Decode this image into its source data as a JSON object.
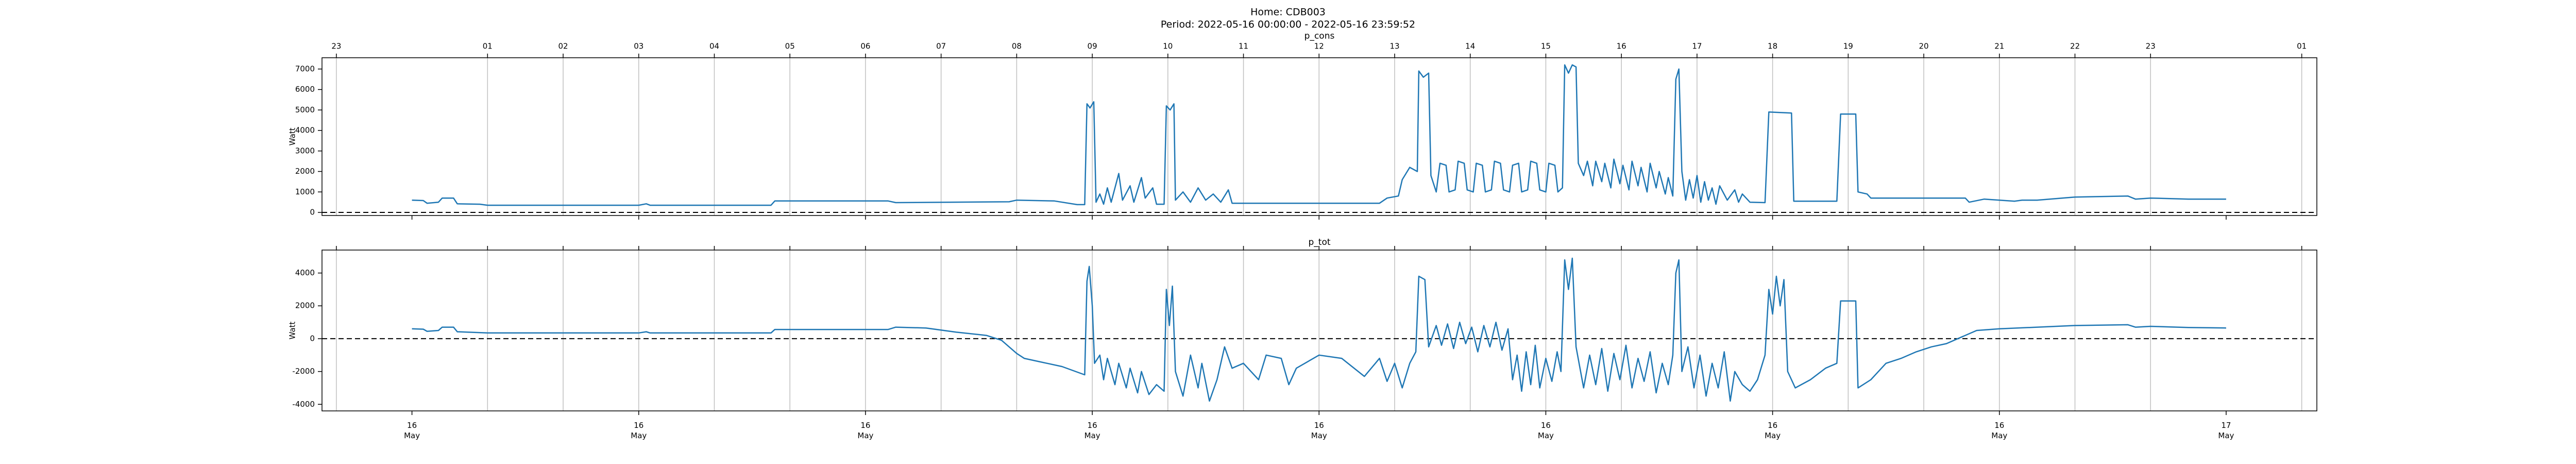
{
  "title": "Home: CDB003",
  "subtitle": "Period: 2022-05-16 00:00:00 - 2022-05-16 23:59:52",
  "chart_data": [
    {
      "type": "line",
      "title": "p_cons",
      "y_label": "Watt",
      "color": "#1f77b4",
      "grid": "x",
      "hline": 0,
      "xlim": [
        -1.19,
        25.2
      ],
      "ylim": [
        -150,
        7550
      ],
      "yticks": [
        0,
        1000,
        2000,
        3000,
        4000,
        5000,
        6000,
        7000
      ],
      "x2ticks": [
        {
          "value": -1,
          "label": "23"
        },
        {
          "value": 1,
          "label": "01"
        },
        {
          "value": 2,
          "label": "02"
        },
        {
          "value": 3,
          "label": "03"
        },
        {
          "value": 4,
          "label": "04"
        },
        {
          "value": 5,
          "label": "05"
        },
        {
          "value": 6,
          "label": "06"
        },
        {
          "value": 7,
          "label": "07"
        },
        {
          "value": 8,
          "label": "08"
        },
        {
          "value": 9,
          "label": "09"
        },
        10,
        11,
        12,
        13,
        14,
        15,
        16,
        17,
        18,
        19,
        20,
        21,
        22,
        23,
        {
          "value": 25,
          "label": "01"
        }
      ],
      "x": [
        0,
        0.15,
        0.2,
        0.35,
        0.4,
        0.55,
        0.6,
        0.9,
        1.0,
        3.0,
        3.1,
        3.15,
        4.75,
        4.8,
        6.3,
        6.4,
        7.9,
        8.0,
        8.5,
        8.8,
        8.9,
        8.93,
        8.97,
        9.02,
        9.05,
        9.1,
        9.15,
        9.2,
        9.25,
        9.35,
        9.4,
        9.5,
        9.55,
        9.65,
        9.7,
        9.8,
        9.85,
        9.95,
        9.98,
        10.03,
        10.08,
        10.1,
        10.2,
        10.3,
        10.4,
        10.5,
        10.6,
        10.7,
        10.8,
        10.85,
        12.8,
        12.9,
        13.05,
        13.1,
        13.2,
        13.3,
        13.32,
        13.38,
        13.45,
        13.48,
        13.55,
        13.6,
        13.68,
        13.72,
        13.8,
        13.84,
        13.92,
        13.96,
        14.04,
        14.08,
        14.16,
        14.2,
        14.28,
        14.32,
        14.4,
        14.44,
        14.52,
        14.56,
        14.64,
        14.68,
        14.76,
        14.8,
        14.88,
        14.92,
        15.0,
        15.04,
        15.12,
        15.16,
        15.22,
        15.25,
        15.3,
        15.35,
        15.4,
        15.43,
        15.5,
        15.55,
        15.62,
        15.66,
        15.74,
        15.78,
        15.86,
        15.9,
        15.98,
        16.02,
        16.1,
        16.14,
        16.22,
        16.26,
        16.34,
        16.38,
        16.46,
        16.5,
        16.58,
        16.62,
        16.68,
        16.72,
        16.76,
        16.8,
        16.85,
        16.9,
        16.95,
        17.0,
        17.05,
        17.1,
        17.15,
        17.2,
        17.25,
        17.3,
        17.4,
        17.5,
        17.55,
        17.6,
        17.7,
        17.9,
        17.95,
        18.25,
        18.28,
        18.85,
        18.9,
        19.1,
        19.13,
        19.25,
        19.3,
        20.55,
        20.6,
        20.8,
        21.2,
        21.3,
        21.5,
        22.0,
        22.7,
        22.8,
        23.0,
        23.5,
        24.0
      ],
      "values": [
        600,
        580,
        450,
        500,
        700,
        700,
        420,
        400,
        350,
        350,
        420,
        350,
        350,
        560,
        560,
        480,
        520,
        600,
        560,
        380,
        380,
        5300,
        5100,
        5400,
        500,
        900,
        400,
        1200,
        500,
        1900,
        600,
        1300,
        500,
        1700,
        700,
        1200,
        400,
        400,
        5200,
        5000,
        5300,
        600,
        1000,
        500,
        1200,
        600,
        900,
        500,
        1100,
        450,
        450,
        700,
        800,
        1600,
        2200,
        2000,
        6900,
        6600,
        6800,
        1800,
        1000,
        2400,
        2300,
        1000,
        1100,
        2500,
        2400,
        1100,
        1000,
        2400,
        2300,
        1000,
        1100,
        2500,
        2400,
        1100,
        1000,
        2300,
        2400,
        1000,
        1100,
        2500,
        2400,
        1100,
        1000,
        2400,
        2300,
        1000,
        1200,
        7200,
        6800,
        7200,
        7100,
        2400,
        1800,
        2500,
        1300,
        2500,
        1500,
        2400,
        1200,
        2600,
        1400,
        2300,
        1100,
        2500,
        1300,
        2200,
        1000,
        2400,
        1200,
        2000,
        900,
        1700,
        800,
        6500,
        7000,
        2000,
        600,
        1600,
        700,
        1800,
        500,
        1500,
        600,
        1200,
        400,
        1300,
        600,
        1100,
        500,
        900,
        500,
        480,
        4900,
        4850,
        550,
        550,
        4800,
        4800,
        1000,
        900,
        700,
        700,
        500,
        650,
        550,
        600,
        600,
        750,
        800,
        650,
        700,
        650,
        650
      ]
    },
    {
      "type": "line",
      "title": "p_tot",
      "y_label": "Watt",
      "color": "#1f77b4",
      "grid": "x",
      "hline": 0,
      "xlim": [
        -1.19,
        25.2
      ],
      "ylim": [
        -4400,
        5400
      ],
      "yticks": [
        -4000,
        -2000,
        0,
        2000,
        4000
      ],
      "xticks": [
        {
          "value": 0,
          "label": "16\nMay"
        },
        {
          "value": 3,
          "label": "16\nMay"
        },
        {
          "value": 6,
          "label": "16\nMay"
        },
        {
          "value": 9,
          "label": "16\nMay"
        },
        {
          "value": 12,
          "label": "16\nMay"
        },
        {
          "value": 15,
          "label": "16\nMay"
        },
        {
          "value": 18,
          "label": "16\nMay"
        },
        {
          "value": 21,
          "label": "16\nMay"
        },
        {
          "value": 24,
          "label": "17\nMay"
        }
      ],
      "x": [
        0,
        0.15,
        0.2,
        0.35,
        0.4,
        0.55,
        0.6,
        1.0,
        3.0,
        3.1,
        3.15,
        4.75,
        4.8,
        6.3,
        6.4,
        6.8,
        7.2,
        7.6,
        7.8,
        7.9,
        8.0,
        8.1,
        8.3,
        8.6,
        8.9,
        8.93,
        8.96,
        9.0,
        9.03,
        9.1,
        9.15,
        9.2,
        9.3,
        9.35,
        9.45,
        9.5,
        9.6,
        9.65,
        9.75,
        9.85,
        9.95,
        9.98,
        10.02,
        10.06,
        10.1,
        10.2,
        10.3,
        10.4,
        10.45,
        10.55,
        10.65,
        10.75,
        10.85,
        11.0,
        11.2,
        11.3,
        11.5,
        11.6,
        11.7,
        12.0,
        12.3,
        12.6,
        12.8,
        12.9,
        13.0,
        13.1,
        13.2,
        13.28,
        13.32,
        13.4,
        13.45,
        13.55,
        13.62,
        13.7,
        13.78,
        13.86,
        13.94,
        14.02,
        14.1,
        14.18,
        14.26,
        14.34,
        14.42,
        14.5,
        14.56,
        14.62,
        14.68,
        14.74,
        14.8,
        14.86,
        14.92,
        15.0,
        15.08,
        15.15,
        15.2,
        15.25,
        15.3,
        15.35,
        15.4,
        15.5,
        15.58,
        15.66,
        15.74,
        15.82,
        15.9,
        15.98,
        16.06,
        16.14,
        16.22,
        16.3,
        16.38,
        16.46,
        16.54,
        16.62,
        16.68,
        16.72,
        16.76,
        16.8,
        16.88,
        16.96,
        17.04,
        17.12,
        17.2,
        17.28,
        17.36,
        17.44,
        17.5,
        17.6,
        17.7,
        17.8,
        17.9,
        17.95,
        18.0,
        18.05,
        18.1,
        18.15,
        18.2,
        18.3,
        18.5,
        18.7,
        18.85,
        18.9,
        19.1,
        19.13,
        19.3,
        19.5,
        19.7,
        19.9,
        20.1,
        20.3,
        20.5,
        20.7,
        21.0,
        21.5,
        22.0,
        22.7,
        22.8,
        23.0,
        23.5,
        24.0
      ],
      "values": [
        600,
        580,
        450,
        500,
        700,
        700,
        420,
        350,
        350,
        420,
        350,
        350,
        560,
        560,
        700,
        650,
        400,
        200,
        -100,
        -500,
        -900,
        -1200,
        -1400,
        -1700,
        -2200,
        3500,
        4400,
        2000,
        -1500,
        -1000,
        -2500,
        -1200,
        -2800,
        -1500,
        -3000,
        -1800,
        -3300,
        -2000,
        -3400,
        -2800,
        -3200,
        3000,
        800,
        3200,
        -2000,
        -3500,
        -1000,
        -3000,
        -1500,
        -3800,
        -2500,
        -500,
        -1800,
        -1500,
        -2500,
        -1000,
        -1200,
        -2800,
        -1800,
        -1000,
        -1200,
        -2300,
        -1200,
        -2600,
        -1500,
        -3000,
        -1500,
        -800,
        3800,
        3600,
        -500,
        800,
        -400,
        900,
        -600,
        1000,
        -300,
        700,
        -800,
        800,
        -500,
        1000,
        -700,
        600,
        -2500,
        -1000,
        -3200,
        -800,
        -2800,
        -400,
        -3000,
        -1200,
        -2600,
        -800,
        -2000,
        4800,
        3000,
        4900,
        -500,
        -3000,
        -1000,
        -2800,
        -600,
        -3200,
        -900,
        -2500,
        -400,
        -3000,
        -1200,
        -2600,
        -800,
        -3300,
        -1500,
        -2800,
        -1000,
        4000,
        4800,
        -2000,
        -500,
        -3000,
        -1000,
        -3500,
        -1500,
        -3000,
        -800,
        -3800,
        -2000,
        -2800,
        -3200,
        -2500,
        -1000,
        3000,
        1500,
        3800,
        2000,
        3600,
        -2000,
        -3000,
        -2500,
        -1800,
        -1500,
        2300,
        2300,
        -3000,
        -2500,
        -1500,
        -1200,
        -800,
        -500,
        -300,
        100,
        500,
        600,
        700,
        800,
        850,
        700,
        750,
        680,
        650
      ]
    }
  ]
}
